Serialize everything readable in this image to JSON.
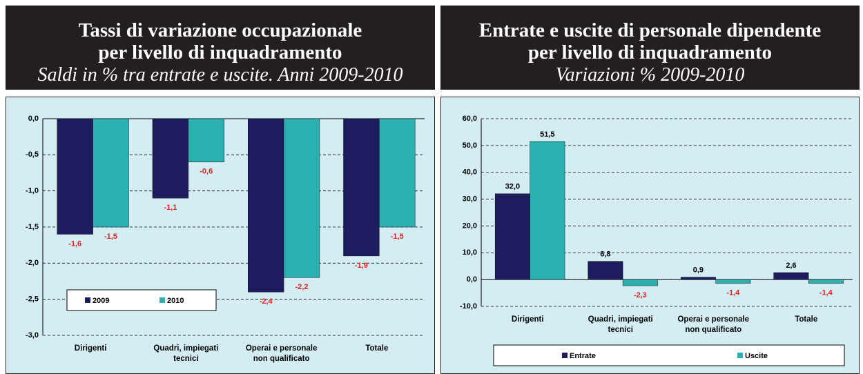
{
  "chart_data": [
    {
      "type": "bar",
      "title": [
        "Tassi di variazione occupazionale",
        "per livello di inquadramento"
      ],
      "subtitle": "Saldi in % tra entrate e uscite. Anni 2009-2010",
      "categories": [
        "Dirigenti",
        "Quadri, impiegati tecnici",
        "Operai e personale non qualificato",
        "Totale"
      ],
      "series": [
        {
          "name": "2009",
          "color": "#1c1c5e",
          "values": [
            -1.6,
            -1.1,
            -2.4,
            -1.9
          ],
          "value_labels": [
            "-1,6",
            "-1,1",
            "-2,4",
            "-1,9"
          ]
        },
        {
          "name": "2010",
          "color": "#2bb0b0",
          "values": [
            -1.5,
            -0.6,
            -2.2,
            -1.5
          ],
          "value_labels": [
            "-1,5",
            "-0,6",
            "-2,2",
            "-1,5"
          ]
        }
      ],
      "ylim": [
        -3,
        0
      ],
      "yticks": [
        {
          "value": 0,
          "label": "0,0"
        },
        {
          "value": -0.5,
          "label": "-0,5"
        },
        {
          "value": -1,
          "label": "-1,0"
        },
        {
          "value": -1.5,
          "label": "-1,5"
        },
        {
          "value": -2,
          "label": "-2,0"
        },
        {
          "value": -2.5,
          "label": "-2,5"
        },
        {
          "value": -3,
          "label": "-3,0"
        }
      ],
      "grid": true,
      "legend": "lower left"
    },
    {
      "type": "bar",
      "title": [
        "Entrate e uscite di personale dipendente",
        "per livello di inquadramento"
      ],
      "subtitle": "Variazioni % 2009-2010",
      "categories": [
        "Dirigenti",
        "Quadri, impiegati tecnici",
        "Operai e personale non qualificato",
        "Totale"
      ],
      "series": [
        {
          "name": "Entrate",
          "color": "#1c1c5e",
          "values": [
            32.0,
            6.8,
            0.9,
            2.6
          ],
          "value_labels": [
            "32,0",
            "6,8",
            "0,9",
            "2,6"
          ]
        },
        {
          "name": "Uscite",
          "color": "#2bb0b0",
          "values": [
            51.5,
            -2.3,
            -1.4,
            -1.4
          ],
          "value_labels": [
            "51,5",
            "-2,3",
            "-1,4",
            "-1,4"
          ]
        }
      ],
      "ylim": [
        -10,
        60
      ],
      "yticks": [
        {
          "value": 60,
          "label": "60,0"
        },
        {
          "value": 50,
          "label": "50,0"
        },
        {
          "value": 40,
          "label": "40,0"
        },
        {
          "value": 30,
          "label": "30,0"
        },
        {
          "value": 20,
          "label": "20,0"
        },
        {
          "value": 10,
          "label": "10,0"
        },
        {
          "value": 0,
          "label": "0,0"
        },
        {
          "value": -10,
          "label": "-10,0"
        }
      ],
      "grid": true,
      "legend": "bottom"
    }
  ]
}
